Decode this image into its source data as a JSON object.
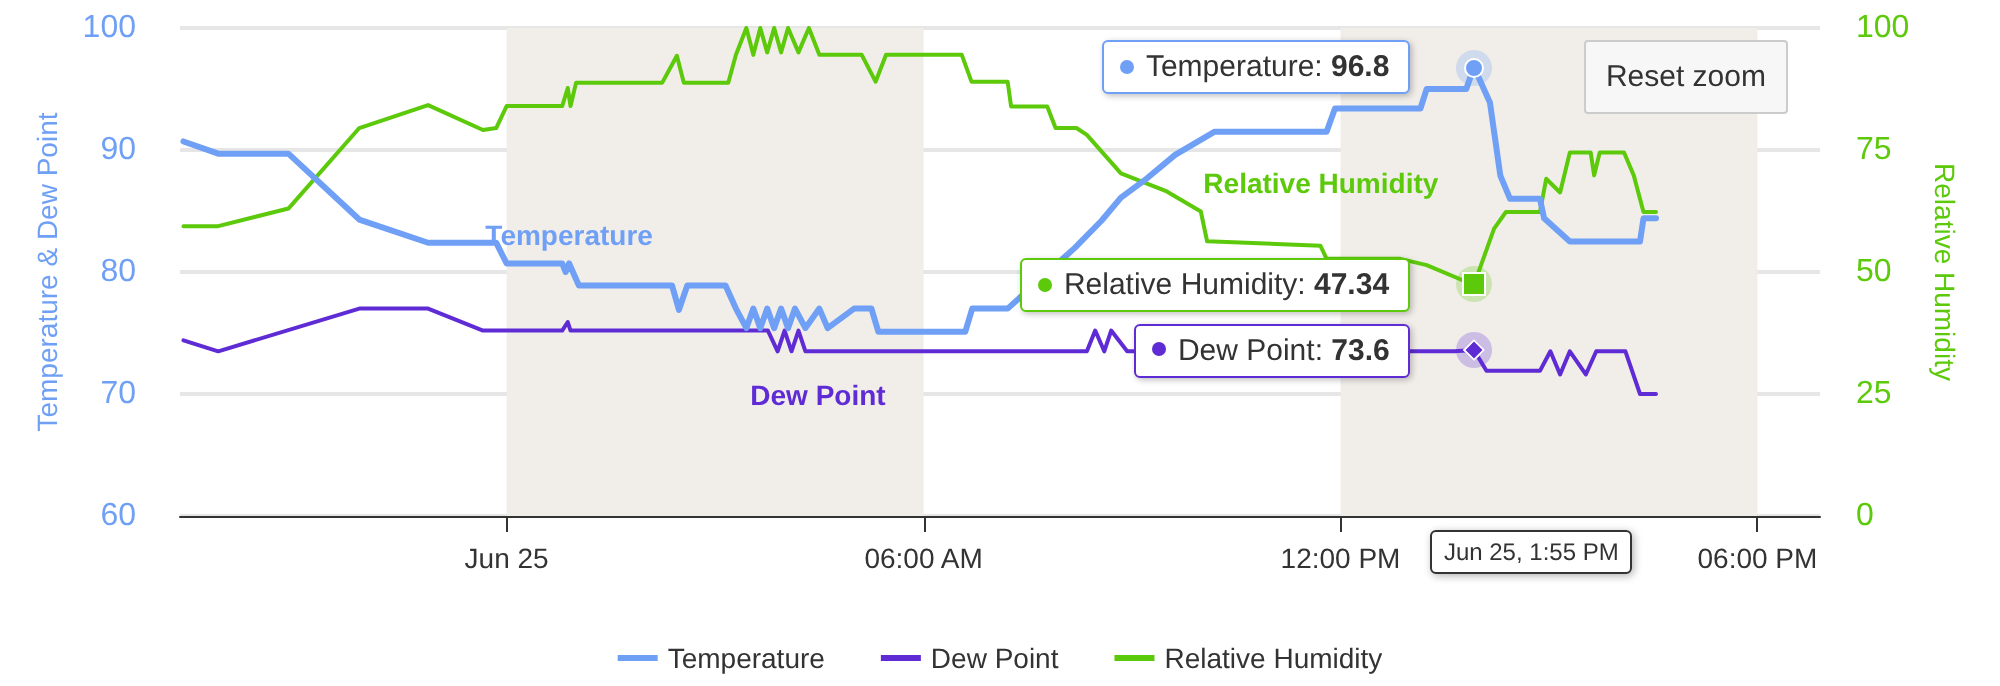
{
  "chart_data": {
    "type": "line",
    "ylabel": "Temperature & Dew Point",
    "y2label": "Relative Humidity",
    "xlim": [
      -4.7,
      18.9
    ],
    "xticks": [
      {
        "value": 0,
        "label": "Jun 25"
      },
      {
        "value": 6,
        "label": "06:00 AM"
      },
      {
        "value": 12,
        "label": "12:00 PM"
      },
      {
        "value": 18,
        "label": "06:00 PM"
      }
    ],
    "ylim": [
      60,
      100
    ],
    "yticks": [
      60,
      70,
      80,
      90,
      100
    ],
    "y2lim": [
      0,
      100
    ],
    "y2ticks": [
      0,
      25,
      50,
      75,
      100
    ],
    "grid": "y",
    "legend": "bottom",
    "marker": "none",
    "line_style": "solid",
    "bands": [
      {
        "axis": "x",
        "from": 0,
        "to": 6,
        "color": "#f1eeea"
      },
      {
        "axis": "x",
        "from": 12,
        "to": 18,
        "color": "#f1eeea"
      }
    ],
    "series": [
      {
        "name": "Temperature",
        "color": "#6fa0f6",
        "x": [
          -4.65,
          -4.15,
          -3.14,
          -2.12,
          -1.13,
          -0.15,
          0,
          0.8,
          0.85,
          0.9,
          1.04,
          2.38,
          2.48,
          2.6,
          3.15,
          3.3,
          3.45,
          3.55,
          3.65,
          3.75,
          3.85,
          3.95,
          4.05,
          4.15,
          4.3,
          4.5,
          4.62,
          5.0,
          5.25,
          5.35,
          6.6,
          6.7,
          7.21,
          7.5,
          7.8,
          8.18,
          8.56,
          8.84,
          9.22,
          9.62,
          10.19,
          11.8,
          11.92,
          13.15,
          13.24,
          13.81,
          13.92,
          14.15,
          14.3,
          14.44,
          14.87,
          14.93,
          15.3,
          16.31,
          16.36,
          16.54
        ],
        "values": [
          90.7,
          89.7,
          89.7,
          84.3,
          82.4,
          82.4,
          80.7,
          80.7,
          80.0,
          80.7,
          78.9,
          78.9,
          76.9,
          78.9,
          78.9,
          77.0,
          75.4,
          77.0,
          75.4,
          77.0,
          75.4,
          77.0,
          75.4,
          77.0,
          75.4,
          77.0,
          75.4,
          77.0,
          77.0,
          75.1,
          75.1,
          77.0,
          77.0,
          null,
          null,
          82.0,
          84.2,
          86.1,
          87.7,
          89.6,
          91.5,
          91.5,
          93.4,
          93.4,
          95.0,
          95.0,
          96.8,
          93.9,
          87.9,
          86.0,
          86.0,
          84.4,
          82.5,
          82.5,
          84.4,
          84.4
        ]
      },
      {
        "name": "Dew Point",
        "color": "#5f2bd4",
        "x": [
          -4.65,
          -4.15,
          -2.12,
          -1.13,
          -0.34,
          0.8,
          0.88,
          0.92,
          3.76,
          3.9,
          4.0,
          4.1,
          4.2,
          4.3,
          4.48,
          8.35,
          8.47,
          8.6,
          8.7,
          8.93,
          13.64,
          13.92,
          14.1,
          14.87,
          15.02,
          15.16,
          15.3,
          15.53,
          15.68,
          16.1,
          16.31,
          16.54
        ],
        "values": [
          74.4,
          73.5,
          77.0,
          77.0,
          75.2,
          75.2,
          75.9,
          75.2,
          75.2,
          73.5,
          75.2,
          73.5,
          75.2,
          73.5,
          73.5,
          73.5,
          75.2,
          73.5,
          75.2,
          73.5,
          73.5,
          73.6,
          71.9,
          71.9,
          73.5,
          71.6,
          73.5,
          71.6,
          73.5,
          73.5,
          70.0,
          70.0
        ]
      },
      {
        "name": "Relative Humidity",
        "color": "#5cc90a",
        "axis": "y2",
        "x": [
          -4.65,
          -4.15,
          -3.14,
          -2.12,
          -1.13,
          -0.34,
          -0.15,
          0,
          0.8,
          0.88,
          0.92,
          1.0,
          2.24,
          2.45,
          2.55,
          3.19,
          3.3,
          3.45,
          3.55,
          3.65,
          3.75,
          3.85,
          3.95,
          4.05,
          4.2,
          4.35,
          4.5,
          5.11,
          5.31,
          5.46,
          6.55,
          6.69,
          7.21,
          7.26,
          7.78,
          7.9,
          8.2,
          8.35,
          8.84,
          9.5,
          9.99,
          10.08,
          11.71,
          11.8,
          12.86,
          13.24,
          13.92,
          14.21,
          14.38,
          14.87,
          14.96,
          15.16,
          15.3,
          15.6,
          15.65,
          15.73,
          16.08,
          16.22,
          16.36,
          16.54
        ],
        "values": [
          59.4,
          59.4,
          63.0,
          79.5,
          84.2,
          79.1,
          79.5,
          84.0,
          84.0,
          87.7,
          84.0,
          88.8,
          88.8,
          94.3,
          88.8,
          88.8,
          94.5,
          100,
          94.5,
          100,
          95,
          100,
          95,
          100,
          95,
          100,
          94.5,
          94.5,
          89.0,
          94.5,
          94.5,
          89.0,
          89.0,
          83.9,
          83.9,
          79.5,
          79.5,
          78.1,
          70.2,
          66.5,
          62.4,
          56.3,
          55.4,
          52.7,
          52.7,
          51.4,
          47.34,
          58.9,
          62.3,
          62.3,
          69.1,
          66.3,
          74.5,
          74.5,
          69.8,
          74.5,
          74.5,
          69.8,
          62.3,
          62.3
        ]
      }
    ],
    "annotations": [
      {
        "text": "Temperature: 96.8",
        "x": 13.92,
        "y": 96.8
      },
      "Relative Humidity: 47.34",
      {
        "text": "Dew Point: 73.6",
        "x": 13.92,
        "y": 73.6
      },
      "Jun 25, 1:55 PM",
      "Reset zoom"
    ]
  }
}
